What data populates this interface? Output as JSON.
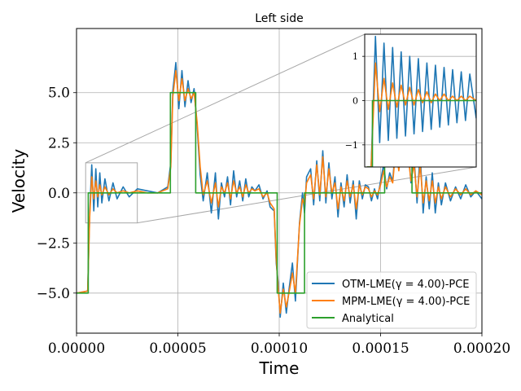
{
  "chart_data": {
    "type": "line",
    "title": "Left side",
    "xlabel": "Time",
    "ylabel": "Velocity",
    "xlim": [
      0,
      0.0002
    ],
    "ylim": [
      -7.0,
      8.2
    ],
    "xticks": [
      0,
      5e-05,
      0.0001,
      0.00015,
      0.0002
    ],
    "xtick_labels": [
      "0.00000",
      "0.00005",
      "0.00010",
      "0.00015",
      "0.00020"
    ],
    "yticks": [
      -5.0,
      -2.5,
      0.0,
      2.5,
      5.0
    ],
    "ytick_labels": [
      "−5.0",
      "−2.5",
      "0.0",
      "2.5",
      "5.0"
    ],
    "grid": true,
    "legend_position": "lower-right",
    "series": [
      {
        "name": "OTM-LME(γ = 4.00)-PCE",
        "color": "#1f77b4",
        "x": [
          0,
          5.5e-06,
          6.5e-06,
          7.5e-06,
          8.5e-06,
          9.5e-06,
          1.05e-05,
          1.15e-05,
          1.25e-05,
          1.4e-05,
          1.6e-05,
          1.8e-05,
          2e-05,
          2.3e-05,
          2.6e-05,
          3e-05,
          3.5e-05,
          4e-05,
          4.5e-05,
          4.65e-05,
          4.75e-05,
          4.9e-05,
          5.05e-05,
          5.2e-05,
          5.35e-05,
          5.5e-05,
          5.65e-05,
          5.8e-05,
          5.95e-05,
          6.1e-05,
          6.25e-05,
          6.45e-05,
          6.65e-05,
          6.85e-05,
          7e-05,
          7.15e-05,
          7.3e-05,
          7.45e-05,
          7.6e-05,
          7.75e-05,
          7.9e-05,
          8.05e-05,
          8.2e-05,
          8.35e-05,
          8.5e-05,
          8.65e-05,
          8.8e-05,
          9e-05,
          9.2e-05,
          9.4e-05,
          9.55e-05,
          9.75e-05,
          9.85e-05,
          9.95e-05,
          0.0001005,
          0.000102,
          0.0001035,
          0.000105,
          0.0001065,
          0.000108,
          0.00011,
          0.0001115,
          0.0001125,
          0.0001135,
          0.0001155,
          0.000117,
          0.0001185,
          0.00012,
          0.0001215,
          0.000123,
          0.0001245,
          0.000126,
          0.0001275,
          0.000129,
          0.0001305,
          0.000132,
          0.0001335,
          0.000135,
          0.0001365,
          0.000138,
          0.0001395,
          0.000141,
          0.0001425,
          0.000144,
          0.0001455,
          0.000147,
          0.0001485,
          0.00015,
          0.0001515,
          0.000153,
          0.0001545,
          0.000156,
          0.0001575,
          0.000159,
          0.0001605,
          0.000162,
          0.0001635,
          0.000165,
          0.0001665,
          0.000168,
          0.0001695,
          0.000171,
          0.0001725,
          0.000174,
          0.0001755,
          0.000177,
          0.0001785,
          0.00018,
          0.000182,
          0.0001845,
          0.000187,
          0.0001895,
          0.000192,
          0.0001945,
          0.000197,
          0.0002
        ],
        "y": [
          -5.0,
          -4.9,
          -1.0,
          1.4,
          -0.9,
          1.2,
          -0.7,
          1.0,
          -0.5,
          0.7,
          -0.4,
          0.5,
          -0.3,
          0.3,
          -0.2,
          0.2,
          0.1,
          0.0,
          0.3,
          1.5,
          5.1,
          6.5,
          4.2,
          6.1,
          4.3,
          5.6,
          4.5,
          5.2,
          3.3,
          0.9,
          -0.4,
          1.0,
          -1.0,
          1.0,
          -1.3,
          0.5,
          -0.2,
          0.8,
          -0.6,
          1.1,
          -0.2,
          0.6,
          -0.4,
          0.7,
          -0.2,
          0.3,
          0.1,
          0.4,
          -0.3,
          0.1,
          -0.7,
          -0.9,
          -3.5,
          -4.5,
          -6.2,
          -4.5,
          -6.0,
          -4.7,
          -3.5,
          -5.4,
          -1.5,
          0.0,
          -1.0,
          0.8,
          1.2,
          -0.6,
          1.6,
          -0.4,
          2.1,
          -0.5,
          1.5,
          -0.3,
          0.8,
          -1.2,
          0.5,
          -0.7,
          0.9,
          -0.5,
          0.6,
          -1.3,
          0.6,
          -0.3,
          0.4,
          0.3,
          -0.4,
          0.2,
          -0.3,
          0.6,
          1.4,
          0.2,
          1.0,
          0.6,
          2.5,
          1.2,
          3.0,
          1.8,
          2.5,
          0.5,
          1.8,
          -0.5,
          2.0,
          -1.0,
          0.8,
          -0.8,
          1.0,
          -1.0,
          0.5,
          -0.6,
          0.5,
          -0.4,
          0.3,
          -0.3,
          0.4,
          -0.2,
          0.1,
          -0.3
        ]
      },
      {
        "name": "MPM-LME(γ = 4.00)-PCE",
        "color": "#ff7f0e",
        "x": [
          0,
          5.5e-06,
          6.5e-06,
          7.5e-06,
          8.5e-06,
          9.5e-06,
          1.05e-05,
          1.15e-05,
          1.25e-05,
          1.4e-05,
          1.6e-05,
          1.8e-05,
          2e-05,
          2.3e-05,
          2.6e-05,
          3e-05,
          3.5e-05,
          4e-05,
          4.5e-05,
          4.65e-05,
          4.75e-05,
          4.9e-05,
          5.05e-05,
          5.2e-05,
          5.35e-05,
          5.5e-05,
          5.65e-05,
          5.8e-05,
          5.95e-05,
          6.1e-05,
          6.25e-05,
          6.45e-05,
          6.65e-05,
          6.85e-05,
          7e-05,
          7.15e-05,
          7.3e-05,
          7.45e-05,
          7.6e-05,
          7.75e-05,
          7.9e-05,
          8.05e-05,
          8.2e-05,
          8.35e-05,
          8.5e-05,
          8.65e-05,
          8.8e-05,
          9e-05,
          9.2e-05,
          9.4e-05,
          9.55e-05,
          9.75e-05,
          9.85e-05,
          9.95e-05,
          0.0001005,
          0.000102,
          0.0001035,
          0.000105,
          0.0001065,
          0.000108,
          0.00011,
          0.0001115,
          0.0001125,
          0.0001135,
          0.0001155,
          0.000117,
          0.0001185,
          0.00012,
          0.0001215,
          0.000123,
          0.0001245,
          0.000126,
          0.0001275,
          0.000129,
          0.0001305,
          0.000132,
          0.0001335,
          0.000135,
          0.0001365,
          0.000138,
          0.0001395,
          0.000141,
          0.0001425,
          0.000144,
          0.0001455,
          0.000147,
          0.0001485,
          0.00015,
          0.0001515,
          0.000153,
          0.0001545,
          0.000156,
          0.0001575,
          0.000159,
          0.0001605,
          0.000162,
          0.0001635,
          0.000165,
          0.0001665,
          0.000168,
          0.0001695,
          0.000171,
          0.0001725,
          0.000174,
          0.0001755,
          0.000177,
          0.0001785,
          0.00018,
          0.000182,
          0.0001845,
          0.000187,
          0.0001895,
          0.000192,
          0.0001945,
          0.000197,
          0.0002
        ],
        "y": [
          -5.0,
          -4.9,
          -1.2,
          0.8,
          -0.3,
          0.6,
          -0.2,
          0.4,
          -0.1,
          0.3,
          -0.1,
          0.2,
          0.0,
          0.1,
          0.0,
          0.1,
          0.0,
          0.0,
          0.2,
          1.3,
          4.8,
          6.1,
          4.6,
          5.7,
          4.6,
          5.2,
          4.7,
          5.0,
          3.5,
          1.3,
          -0.1,
          0.6,
          -0.5,
          0.5,
          -0.7,
          0.3,
          0.0,
          0.5,
          -0.3,
          0.6,
          0.0,
          0.3,
          -0.2,
          0.4,
          0.0,
          0.2,
          0.1,
          0.2,
          -0.2,
          0.0,
          -0.5,
          -0.8,
          -3.3,
          -4.8,
          -6.0,
          -4.8,
          -5.7,
          -4.9,
          -4.0,
          -5.0,
          -1.6,
          -0.3,
          -0.6,
          0.5,
          0.9,
          -0.3,
          1.4,
          -0.1,
          1.8,
          -0.2,
          1.2,
          0.0,
          0.5,
          -0.8,
          0.3,
          -0.4,
          0.6,
          -0.2,
          0.4,
          -0.8,
          0.4,
          -0.1,
          0.3,
          0.2,
          -0.2,
          0.1,
          -0.1,
          0.4,
          1.1,
          0.3,
          0.8,
          0.5,
          2.2,
          1.1,
          2.6,
          1.5,
          2.0,
          0.6,
          1.4,
          -0.2,
          1.4,
          -0.5,
          0.6,
          -0.4,
          0.6,
          -0.5,
          0.3,
          -0.3,
          0.3,
          -0.2,
          0.2,
          -0.1,
          0.2,
          -0.1,
          0.1,
          -0.1
        ]
      },
      {
        "name": "Analytical",
        "color": "#2ca02c",
        "x": [
          0,
          5.8e-06,
          5.8e-06,
          4.63e-05,
          4.63e-05,
          5.88e-05,
          5.88e-05,
          9.9e-05,
          9.9e-05,
          0.0001125,
          0.0001125,
          0.000152,
          0.000152,
          0.0001655,
          0.0001655,
          0.0002
        ],
        "y": [
          -5.0,
          -5.0,
          0.0,
          0.0,
          5.0,
          5.0,
          0.0,
          0.0,
          -5.0,
          -5.0,
          0.0,
          0.0,
          5.0,
          5.0,
          0.0,
          0.0
        ]
      }
    ],
    "inset": {
      "xlim": [
        4e-06,
        3e-05
      ],
      "ylim": [
        -1.5,
        1.5
      ],
      "yticks": [
        -1,
        0,
        1
      ],
      "ytick_labels": [
        "−1",
        "0",
        "1"
      ],
      "grid": true,
      "series": [
        {
          "name": "OTM-LME(γ = 4.00)-PCE",
          "color": "#1f77b4",
          "x": [
            4.5e-06,
            5.5e-06,
            6.5e-06,
            7.5e-06,
            8.5e-06,
            9.5e-06,
            1.05e-05,
            1.15e-05,
            1.25e-05,
            1.35e-05,
            1.45e-05,
            1.55e-05,
            1.65e-05,
            1.75e-05,
            1.85e-05,
            1.95e-05,
            2.05e-05,
            2.15e-05,
            2.25e-05,
            2.35e-05,
            2.45e-05,
            2.55e-05,
            2.65e-05,
            2.75e-05,
            2.85e-05,
            3e-05
          ],
          "y": [
            -1.5,
            -1.5,
            1.45,
            -0.95,
            1.3,
            -0.9,
            1.2,
            -0.85,
            1.1,
            -0.8,
            1.0,
            -0.75,
            0.95,
            -0.7,
            0.85,
            -0.65,
            0.8,
            -0.6,
            0.75,
            -0.55,
            0.7,
            -0.5,
            0.65,
            -0.45,
            0.6,
            -0.4
          ]
        },
        {
          "name": "MPM-LME(γ = 4.00)-PCE",
          "color": "#ff7f0e",
          "x": [
            4.5e-06,
            5.5e-06,
            6.5e-06,
            7.5e-06,
            8.5e-06,
            9.5e-06,
            1.05e-05,
            1.15e-05,
            1.25e-05,
            1.35e-05,
            1.45e-05,
            1.55e-05,
            1.65e-05,
            1.75e-05,
            1.85e-05,
            1.95e-05,
            2.05e-05,
            2.15e-05,
            2.25e-05,
            2.35e-05,
            2.45e-05,
            2.55e-05,
            2.65e-05,
            2.75e-05,
            2.85e-05,
            3e-05
          ],
          "y": [
            -1.5,
            -1.5,
            0.85,
            -0.25,
            0.5,
            -0.2,
            0.4,
            -0.15,
            0.35,
            -0.1,
            0.3,
            -0.1,
            0.25,
            -0.05,
            0.2,
            -0.05,
            0.15,
            0.0,
            0.15,
            0.0,
            0.1,
            0.0,
            0.1,
            0.0,
            0.1,
            0.0
          ]
        },
        {
          "name": "Analytical",
          "color": "#2ca02c",
          "x": [
            4.5e-06,
            5.8e-06,
            5.8e-06,
            3e-05
          ],
          "y": [
            -1.5,
            -1.5,
            0.0,
            0.0
          ]
        }
      ]
    },
    "zoom_box": {
      "xlim": [
        4.5e-06,
        3e-05
      ],
      "ylim": [
        -1.5,
        1.5
      ]
    }
  }
}
